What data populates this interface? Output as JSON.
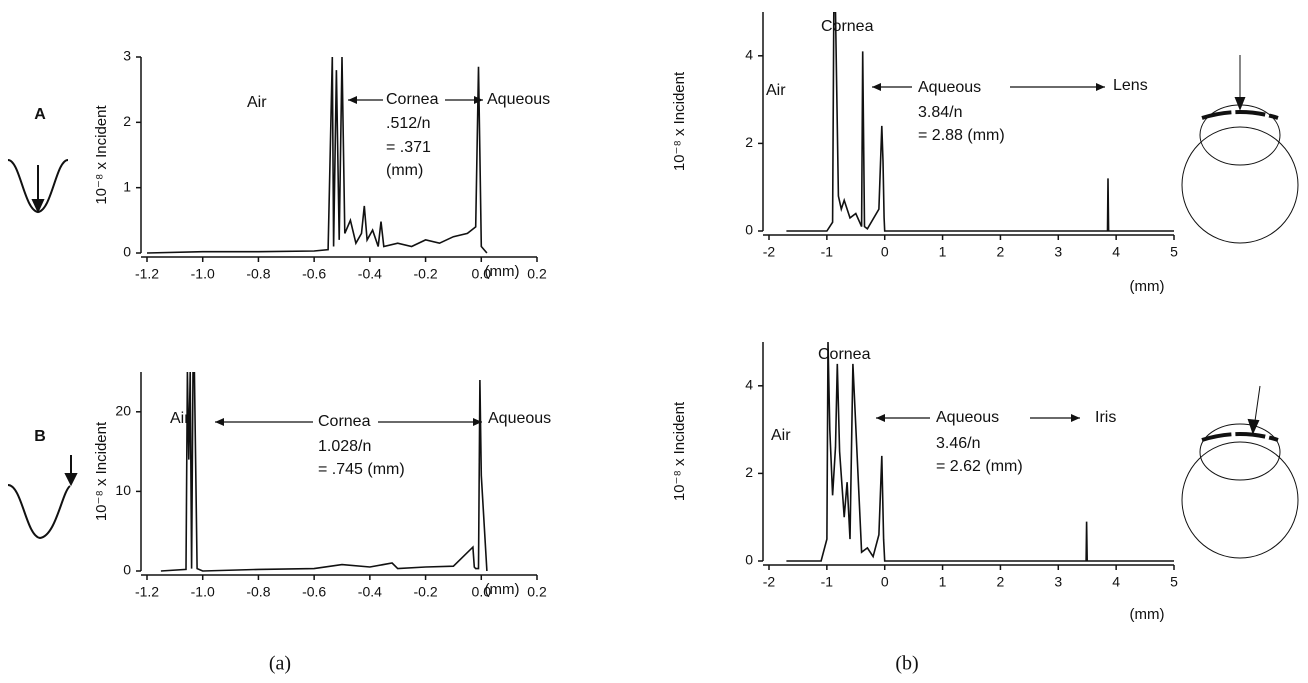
{
  "chart_data": [
    {
      "type": "line",
      "panel_label": "A",
      "ylabel": "10⁻⁸ x Incident",
      "xlabel": "(mm)",
      "annotations": [
        "Air",
        "Cornea",
        ".512/n",
        "= .371",
        "(mm)",
        "Aqueous"
      ],
      "x": [
        -1.2,
        -1.0,
        -0.8,
        -0.6,
        -0.55,
        -0.535,
        -0.53,
        -0.52,
        -0.51,
        -0.5,
        -0.49,
        -0.47,
        -0.45,
        -0.43,
        -0.42,
        -0.41,
        -0.39,
        -0.37,
        -0.36,
        -0.35,
        -0.3,
        -0.25,
        -0.2,
        -0.15,
        -0.1,
        -0.05,
        -0.02,
        -0.01,
        -0.005,
        0,
        0.02
      ],
      "series": [
        {
          "color": "#111111",
          "values": [
            0,
            0.02,
            0.02,
            0.03,
            0.05,
            3,
            0.1,
            2.8,
            0.2,
            3,
            0.3,
            0.5,
            0.15,
            0.3,
            0.72,
            0.2,
            0.35,
            0.1,
            0.48,
            0.1,
            0.15,
            0.1,
            0.2,
            0.15,
            0.25,
            0.3,
            0.4,
            2.85,
            1.5,
            0.1,
            0
          ]
        }
      ],
      "xlim": [
        -1.2,
        0.2
      ],
      "ylim": [
        0,
        3
      ],
      "xticks": [
        -1.2,
        {
          "value": -1,
          "label": "-1.0"
        },
        -0.8,
        -0.6,
        -0.4,
        -0.2,
        {
          "value": 0,
          "label": "0.0"
        },
        0.2
      ],
      "yticks": [
        0,
        1,
        2,
        3
      ]
    },
    {
      "type": "line",
      "panel_label": "B",
      "ylabel": "10⁻⁸ x Incident",
      "xlabel": "(mm)",
      "annotations": [
        "Air",
        "Cornea",
        "1.028/n",
        "= .745 (mm)",
        "Aqueous"
      ],
      "x": [
        -1.15,
        -1.06,
        -1.055,
        -1.05,
        -1.045,
        -1.04,
        -1.035,
        -1.03,
        -1.02,
        -1.0,
        -0.8,
        -0.6,
        -0.5,
        -0.4,
        -0.32,
        -0.3,
        -0.2,
        -0.1,
        -0.03,
        -0.025,
        -0.02,
        -0.01,
        -0.005,
        0,
        0.02
      ],
      "series": [
        {
          "color": "#111111",
          "values": [
            0,
            0.2,
            25,
            14,
            25,
            0.3,
            25,
            25,
            0.3,
            0,
            0.2,
            0.3,
            0.8,
            0.5,
            1,
            0.3,
            0.5,
            0.6,
            3,
            0.5,
            0.3,
            0.3,
            24,
            12,
            0
          ]
        }
      ],
      "xlim": [
        -1.2,
        0.2
      ],
      "ylim": [
        0,
        25
      ],
      "xticks": [
        -1.2,
        {
          "value": -1,
          "label": "-1.0"
        },
        -0.8,
        -0.6,
        -0.4,
        -0.2,
        {
          "value": 0,
          "label": "0.0"
        },
        0.2
      ],
      "yticks": [
        0,
        10,
        20
      ]
    },
    {
      "type": "line",
      "ylabel": "10⁻⁸ x Incident",
      "xlabel": "(mm)",
      "annotations": [
        "Air",
        "Cornea",
        "Aqueous",
        "3.84/n",
        "= 2.88 (mm)",
        "Lens"
      ],
      "x": [
        -1.7,
        -1.0,
        -0.9,
        -0.88,
        -0.85,
        -0.8,
        -0.75,
        -0.7,
        -0.6,
        -0.5,
        -0.4,
        -0.38,
        -0.35,
        -0.3,
        -0.1,
        -0.05,
        -0.03,
        -0.01,
        0,
        0.05,
        1,
        2,
        3,
        3.85,
        3.86,
        3.87,
        4,
        5
      ],
      "series": [
        {
          "color": "#111111",
          "values": [
            0,
            0,
            0.2,
            5,
            5,
            0.8,
            0.5,
            0.7,
            0.3,
            0.4,
            0.1,
            4.1,
            0.1,
            0.05,
            0.5,
            2.4,
            1.6,
            0.3,
            0,
            0,
            0,
            0,
            0,
            0,
            1.2,
            0,
            0,
            0
          ]
        }
      ],
      "xlim": [
        -2,
        5
      ],
      "ylim": [
        0,
        5
      ],
      "xticks": [
        -2,
        -1,
        0,
        1,
        2,
        3,
        4,
        5
      ],
      "yticks": [
        0,
        2,
        4
      ]
    },
    {
      "type": "line",
      "ylabel": "10⁻⁸ x Incident",
      "xlabel": "(mm)",
      "annotations": [
        "Air",
        "Cornea",
        "Aqueous",
        "3.46/n",
        "= 2.62 (mm)",
        "Iris"
      ],
      "x": [
        -1.7,
        -1.1,
        -1.0,
        -0.98,
        -0.95,
        -0.9,
        -0.85,
        -0.82,
        -0.78,
        -0.7,
        -0.65,
        -0.6,
        -0.55,
        -0.4,
        -0.3,
        -0.2,
        -0.1,
        -0.05,
        -0.02,
        0,
        1,
        2,
        3,
        3.48,
        3.49,
        3.5,
        4,
        5
      ],
      "series": [
        {
          "color": "#111111",
          "values": [
            0,
            0,
            0.5,
            5,
            3,
            1.5,
            2.6,
            4.5,
            2.5,
            1,
            1.8,
            0.5,
            4.5,
            0.2,
            0.3,
            0.1,
            0.6,
            2.4,
            0.5,
            0,
            0,
            0,
            0,
            0,
            0.9,
            0,
            0,
            0
          ]
        }
      ],
      "xlim": [
        -2,
        5
      ],
      "ylim": [
        0,
        5
      ],
      "xticks": [
        -2,
        -1,
        0,
        1,
        2,
        3,
        4,
        5
      ],
      "yticks": [
        0,
        2,
        4
      ]
    }
  ],
  "captions": [
    "(a)",
    "(b)"
  ]
}
